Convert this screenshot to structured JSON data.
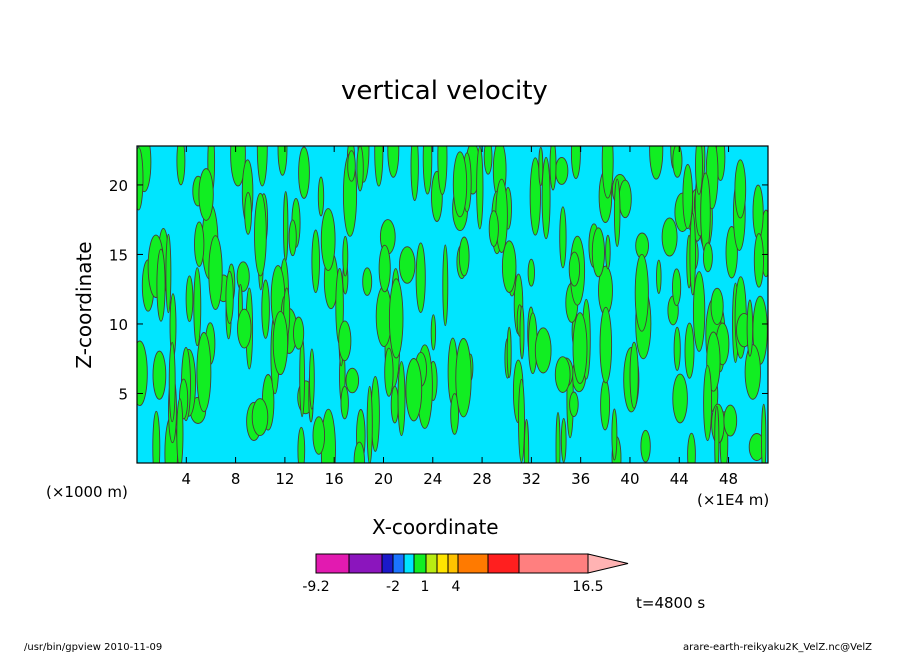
{
  "chart_data": {
    "type": "heatmap",
    "title": "vertical velocity",
    "xlabel": "X-coordinate",
    "ylabel": "Z-coordinate",
    "x_unit_left": "(×1000 m)",
    "x_unit_right": "(×1E4 m)",
    "xlim": [
      0,
      51.2
    ],
    "ylim": [
      0,
      22.8
    ],
    "x_ticks": [
      4,
      8,
      12,
      16,
      20,
      24,
      28,
      32,
      36,
      40,
      44,
      48
    ],
    "y_ticks": [
      5,
      10,
      15,
      20
    ],
    "colorbar": {
      "colors": [
        "#e21ab0",
        "#8b15bd",
        "#1b19c9",
        "#1a74ff",
        "#00e5ff",
        "#11ee22",
        "#b8ec12",
        "#ffe500",
        "#ffc200",
        "#ff7a00",
        "#ff1f1f",
        "#ff7f7f",
        "#ffb3b3"
      ],
      "labels": [
        "-9.2",
        "-2",
        "1",
        "4",
        "16.5"
      ]
    },
    "field_colors": {
      "negative": "#00e5ff",
      "positive": "#11ee22",
      "contour": "#4a3a3a"
    },
    "time_label": "t=4800 s"
  },
  "footer": {
    "left": "/usr/bin/gpview   2010-11-09",
    "right": "arare-earth-reikyaku2K_VelZ.nc@VelZ"
  }
}
